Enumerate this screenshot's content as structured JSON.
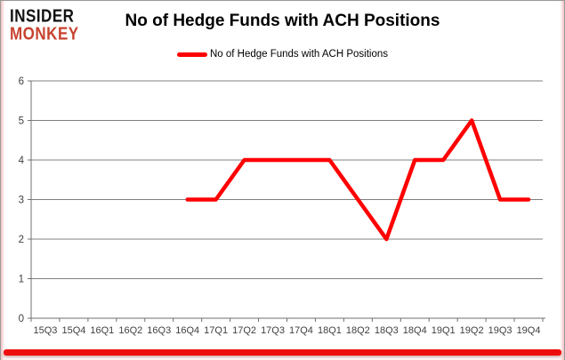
{
  "branding": {
    "logo_line1": "INSIDER",
    "logo_line2": "MONKEY",
    "logo_color_primary": "#111111",
    "logo_color_secondary": "#c7432f"
  },
  "header": {
    "title": "No of Hedge Funds with ACH Positions"
  },
  "legend": {
    "label": "No of Hedge Funds with ACH Positions",
    "swatch_color": "#ff0000"
  },
  "footer": {
    "accent_bar_color": "#ee0d0d"
  },
  "chart_data": {
    "type": "line",
    "title": "No of Hedge Funds with ACH Positions",
    "categories": [
      "15Q3",
      "15Q4",
      "16Q1",
      "16Q2",
      "16Q3",
      "16Q4",
      "17Q1",
      "17Q2",
      "17Q3",
      "17Q4",
      "18Q1",
      "18Q2",
      "18Q3",
      "18Q4",
      "19Q1",
      "19Q2",
      "19Q3",
      "19Q4"
    ],
    "series": [
      {
        "name": "No of Hedge Funds with ACH Positions",
        "color": "#ff0000",
        "values": [
          null,
          null,
          null,
          null,
          null,
          3,
          3,
          4,
          4,
          4,
          4,
          3,
          2,
          4,
          4,
          5,
          3,
          3
        ]
      }
    ],
    "ylim": [
      0,
      6
    ],
    "yticks": [
      0,
      1,
      2,
      3,
      4,
      5,
      6
    ],
    "grid": true,
    "legend_position": "top-center",
    "gridline_color": "#808080",
    "axis_color": "#707070",
    "tick_label_color": "#3f3f3f"
  }
}
